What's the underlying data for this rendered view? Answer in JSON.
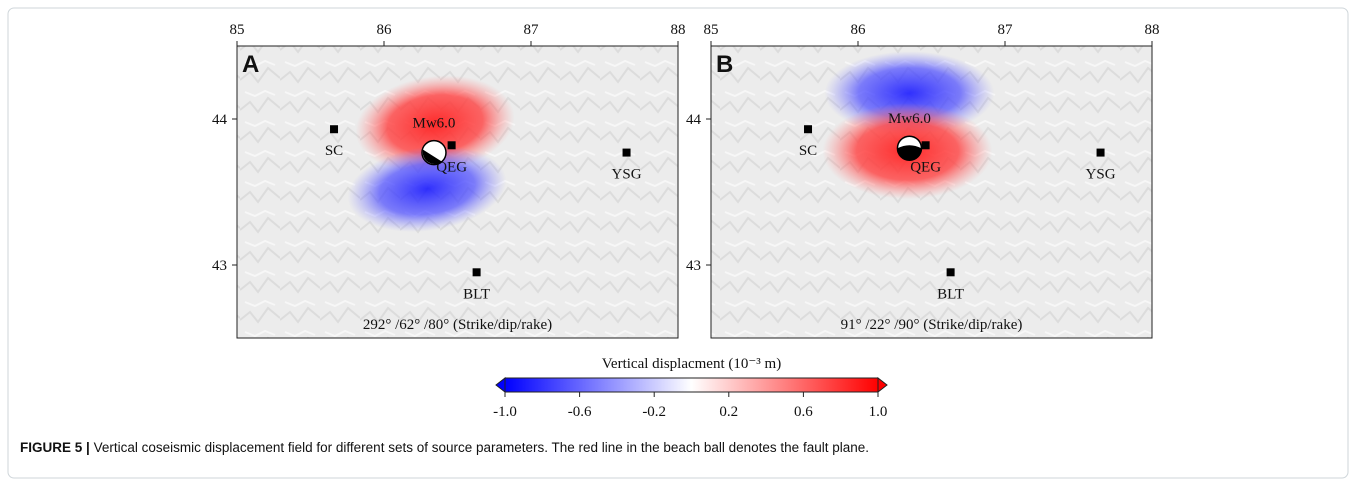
{
  "figure": {
    "panels": [
      {
        "label": "A",
        "xlim": [
          85,
          88
        ],
        "ylim": [
          42.5,
          44.5
        ],
        "xticks": [
          85,
          86,
          87,
          88
        ],
        "yticks": [
          43,
          44
        ],
        "event": {
          "label": "Mw6.0",
          "lon": 86.34,
          "lat": 43.77
        },
        "stations": [
          {
            "name": "SC",
            "lon": 85.66,
            "lat": 43.93
          },
          {
            "name": "QEG",
            "lon": 86.46,
            "lat": 43.82
          },
          {
            "name": "YSG",
            "lon": 87.65,
            "lat": 43.77
          },
          {
            "name": "BLT",
            "lon": 86.63,
            "lat": 42.95
          }
        ],
        "annotation": "292° /62° /80° (Strike/dip/rake)"
      },
      {
        "label": "B",
        "xlim": [
          85,
          88
        ],
        "ylim": [
          42.5,
          44.5
        ],
        "xticks": [
          85,
          86,
          87,
          88
        ],
        "yticks": [
          43,
          44
        ],
        "event": {
          "label": "Mw6.0",
          "lon": 86.35,
          "lat": 43.8
        },
        "stations": [
          {
            "name": "SC",
            "lon": 85.66,
            "lat": 43.93
          },
          {
            "name": "QEG",
            "lon": 86.46,
            "lat": 43.82
          },
          {
            "name": "YSG",
            "lon": 87.65,
            "lat": 43.77
          },
          {
            "name": "BLT",
            "lon": 86.63,
            "lat": 42.95
          }
        ],
        "annotation": "91° /22° /90° (Strike/dip/rake)"
      }
    ],
    "colorbar": {
      "title": "Vertical displacment (10⁻³ m)",
      "lim": [
        -1,
        1
      ],
      "ticks": [
        {
          "value": -1,
          "label": "-1.0"
        },
        -0.6,
        -0.2,
        0.2,
        0.6,
        {
          "value": 1,
          "label": "1.0"
        }
      ],
      "colors": [
        "#0000ff",
        "#ffffff",
        "#ff0000"
      ]
    },
    "caption": {
      "label": "FIGURE 5 |",
      "text": "Vertical coseismic displacement field for different sets of source parameters. The red line in the beach ball denotes the fault plane."
    }
  }
}
